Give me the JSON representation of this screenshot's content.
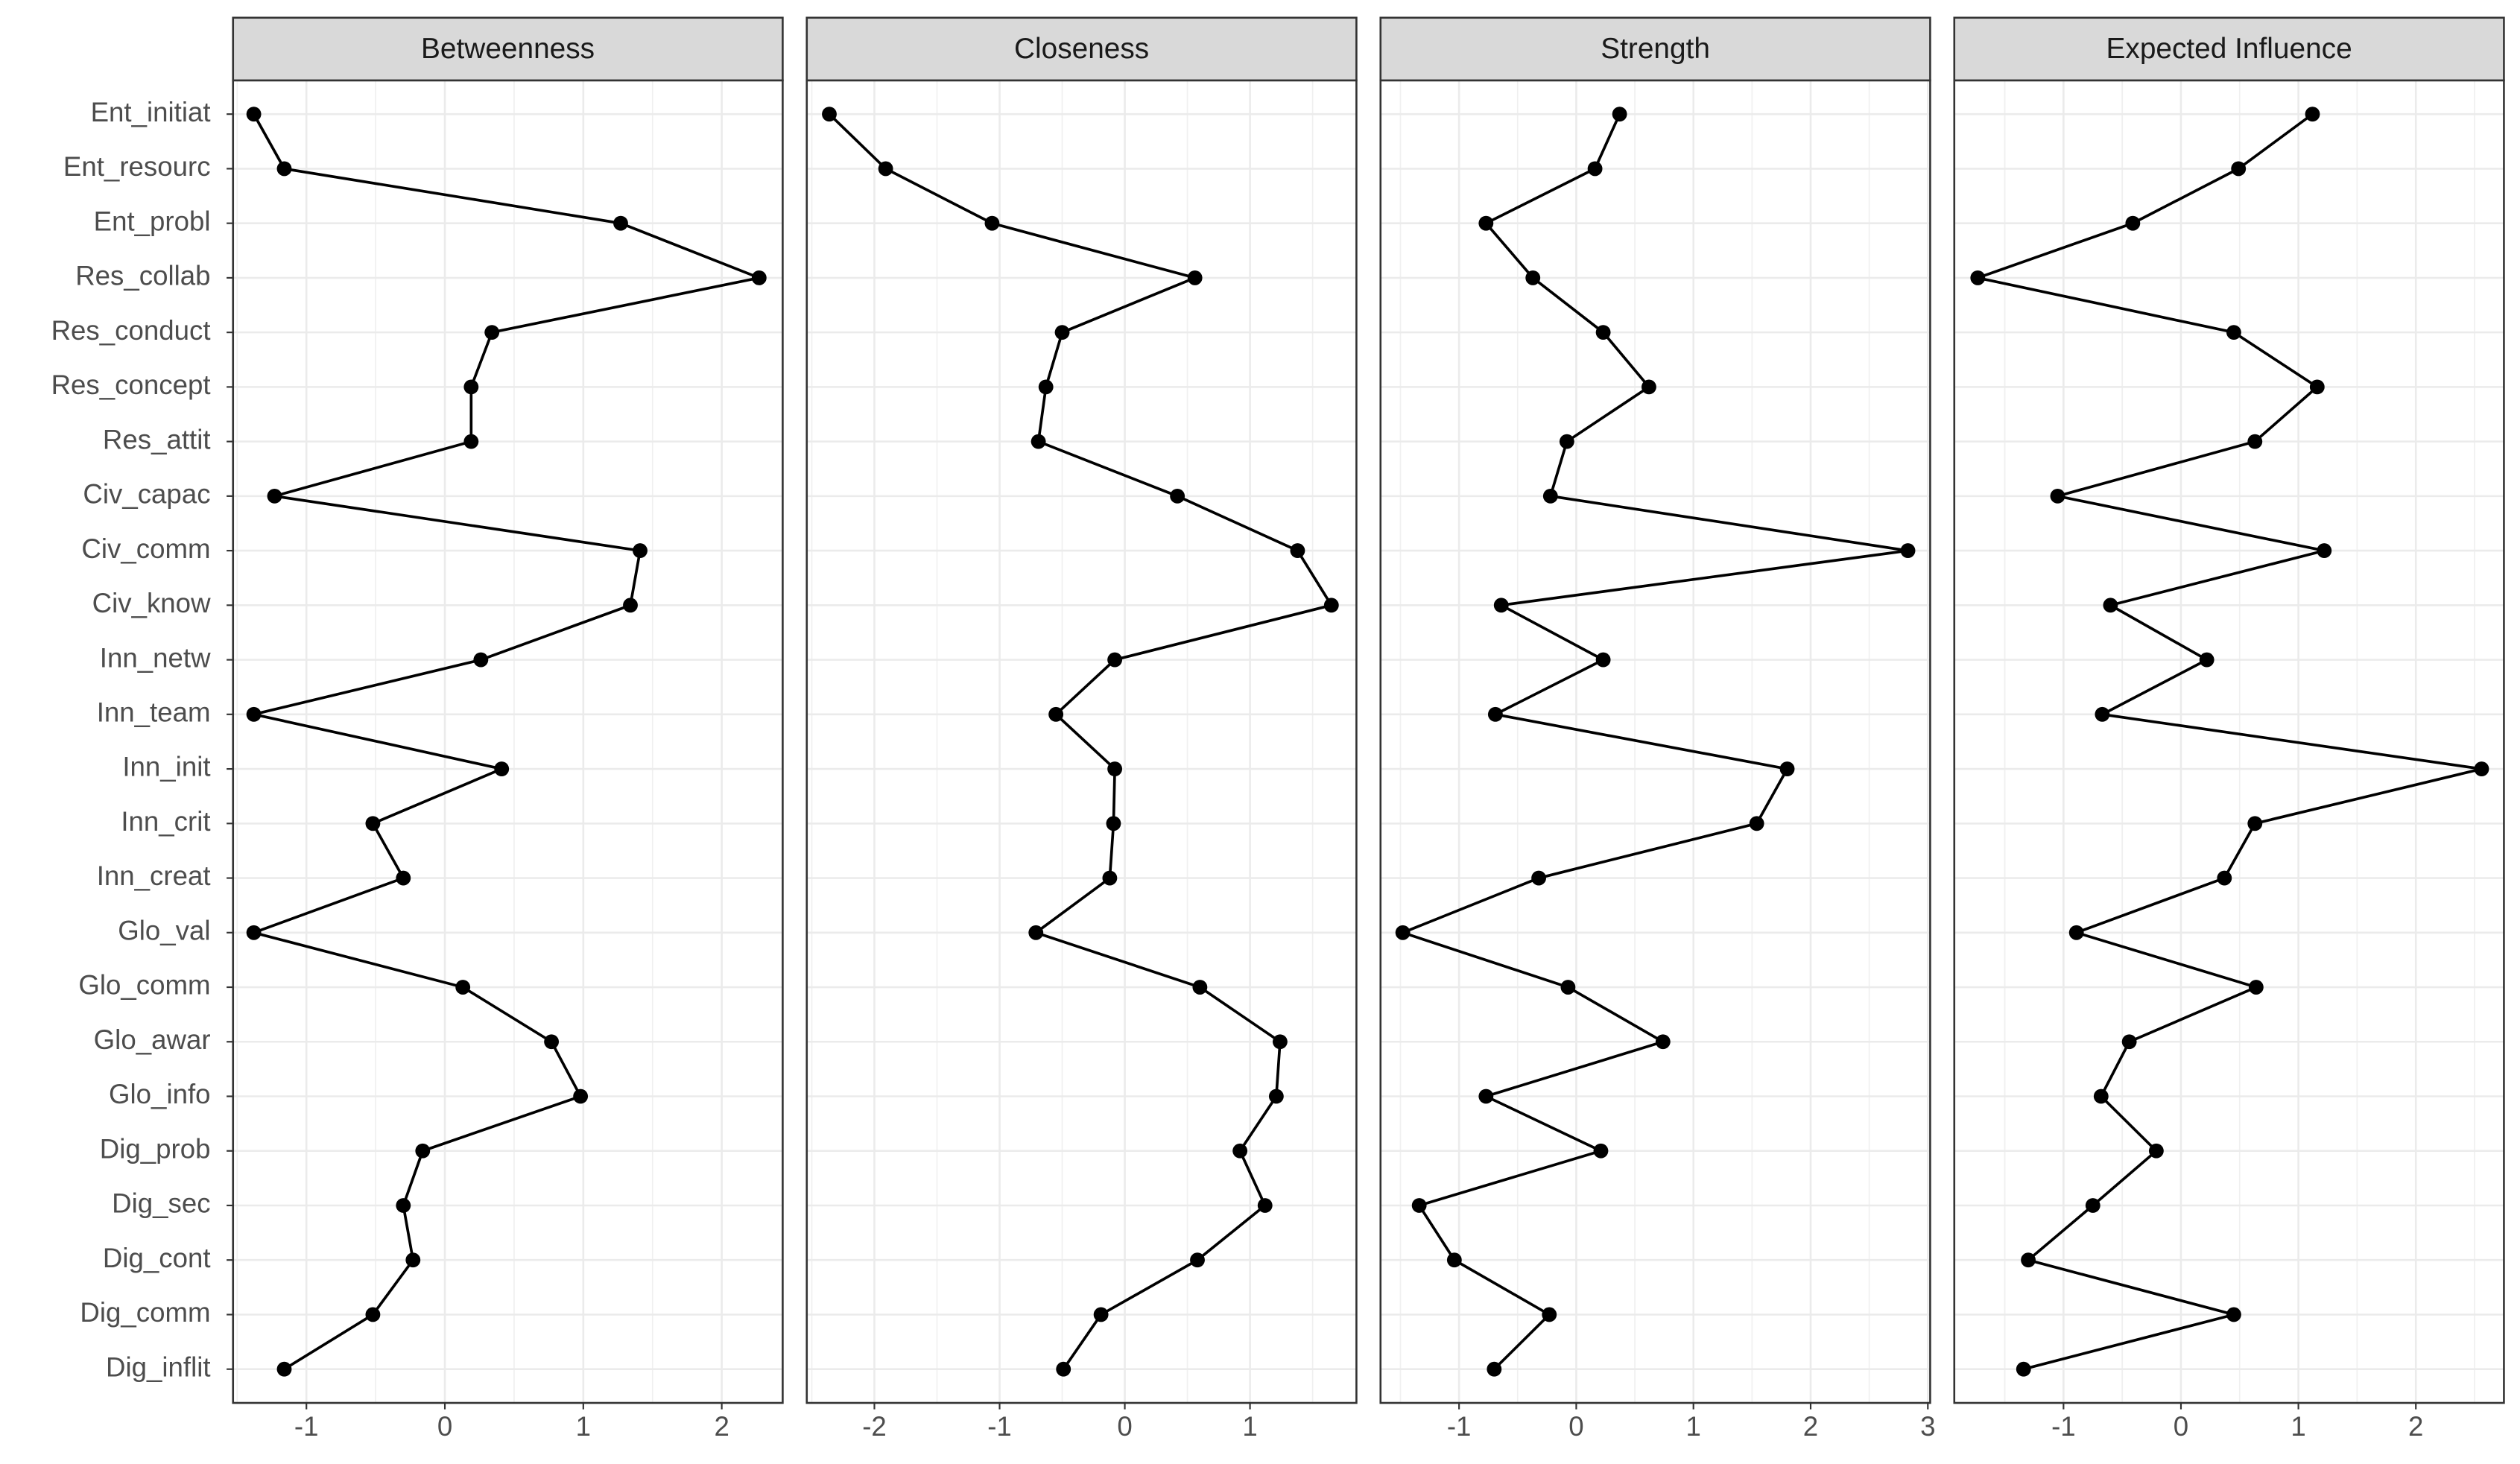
{
  "chart_data": {
    "type": "line",
    "color": "#000000",
    "grid": true,
    "categories": [
      "Ent_initiat",
      "Ent_resourc",
      "Ent_probl",
      "Res_collab",
      "Res_conduct",
      "Res_concept",
      "Res_attit",
      "Civ_capac",
      "Civ_comm",
      "Civ_know",
      "Inn_netw",
      "Inn_team",
      "Inn_init",
      "Inn_crit",
      "Inn_creat",
      "Glo_val",
      "Glo_comm",
      "Glo_awar",
      "Glo_info",
      "Dig_prob",
      "Dig_sec",
      "Dig_cont",
      "Dig_comm",
      "Dig_inflit"
    ],
    "panels": [
      {
        "title": "Betweenness",
        "xlim": [
          -1.53,
          2.44
        ],
        "xticks": [
          -1,
          0,
          1,
          2
        ],
        "values": [
          -1.38,
          -1.16,
          1.27,
          2.27,
          0.34,
          0.19,
          0.19,
          -1.23,
          1.41,
          1.34,
          0.26,
          -1.38,
          0.41,
          -0.52,
          -0.3,
          -1.38,
          0.13,
          0.77,
          0.98,
          -0.16,
          -0.3,
          -0.23,
          -0.52,
          -1.16
        ]
      },
      {
        "title": "Closeness",
        "xlim": [
          -2.54,
          1.85
        ],
        "xticks": [
          -2,
          -1,
          0,
          1
        ],
        "values": [
          -2.36,
          -1.91,
          -1.06,
          0.56,
          -0.5,
          -0.63,
          -0.69,
          0.42,
          1.38,
          1.65,
          -0.08,
          -0.55,
          -0.08,
          -0.09,
          -0.12,
          -0.71,
          0.6,
          1.24,
          1.21,
          0.92,
          1.12,
          0.58,
          -0.19,
          -0.49
        ]
      },
      {
        "title": "Strength",
        "xlim": [
          -1.67,
          3.02
        ],
        "xticks": [
          -1,
          0,
          1,
          2,
          3
        ],
        "values": [
          0.37,
          0.16,
          -0.77,
          -0.37,
          0.23,
          0.62,
          -0.08,
          -0.22,
          2.83,
          -0.64,
          0.23,
          -0.69,
          1.8,
          1.54,
          -0.32,
          -1.48,
          -0.07,
          0.74,
          -0.77,
          0.21,
          -1.34,
          -1.04,
          -0.23,
          -0.7
        ]
      },
      {
        "title": "Expected Influence",
        "xlim": [
          -1.93,
          2.75
        ],
        "xticks": [
          -1,
          0,
          1,
          2
        ],
        "values": [
          1.12,
          0.49,
          -0.41,
          -1.73,
          0.45,
          1.16,
          0.63,
          -1.05,
          1.22,
          -0.6,
          0.22,
          -0.67,
          2.56,
          0.63,
          0.37,
          -0.89,
          0.64,
          -0.44,
          -0.68,
          -0.21,
          -0.75,
          -1.3,
          0.45,
          -1.34
        ]
      }
    ]
  }
}
